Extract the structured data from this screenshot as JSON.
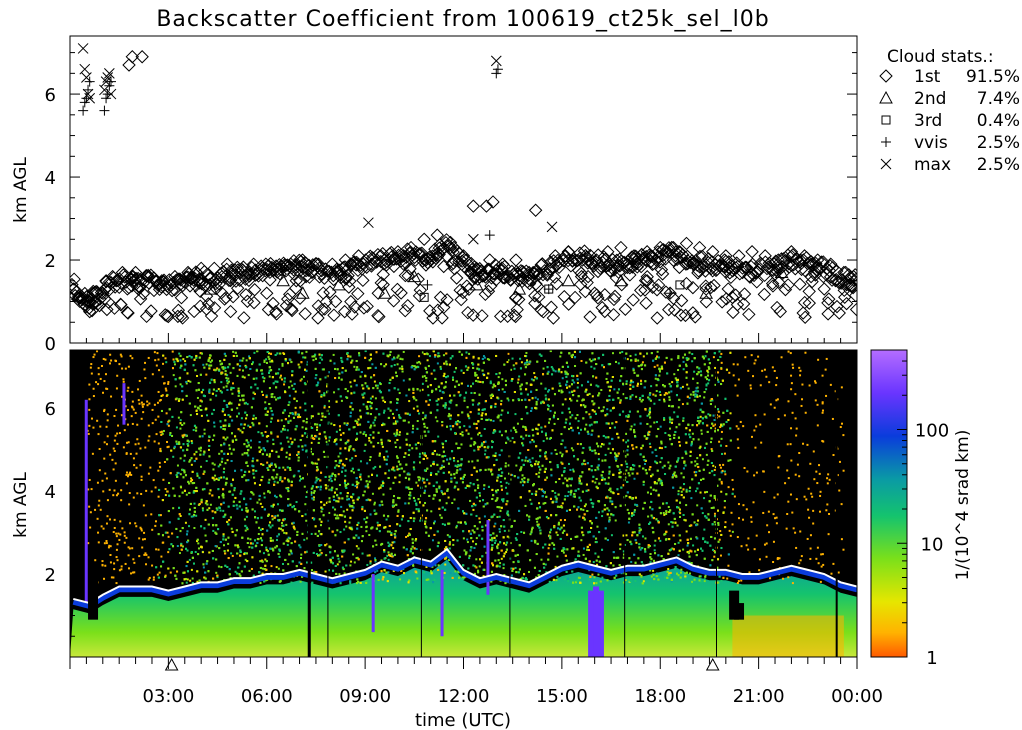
{
  "title": "Backscatter Coefficient from 100619_ct25k_sel_l0b",
  "colors": {
    "background": "#ffffff",
    "axes": "#000000",
    "cloud_marker": "#000000",
    "cloud_layer_white": "#ffffff",
    "colormap": [
      "#ff5a00",
      "#ffb300",
      "#e6e600",
      "#7be01a",
      "#14c36e",
      "#0a9aa5",
      "#0a3cdc",
      "#6a35ff",
      "#b46dff"
    ]
  },
  "chart_data": [
    {
      "type": "scatter",
      "name": "cloud-base-panel",
      "ylabel": "km AGL",
      "xlim": [
        0,
        24
      ],
      "ylim": [
        0,
        7.4
      ],
      "y_ticks": [
        "0",
        "2",
        "4",
        "6"
      ],
      "legend": {
        "position": "right",
        "title": "Cloud stats.:",
        "entries": [
          {
            "symbol": "diamond-icon",
            "glyph": "◇",
            "label": "1st",
            "value": "91.5%"
          },
          {
            "symbol": "triangle-icon",
            "glyph": "△",
            "label": "2nd",
            "value": "7.4%"
          },
          {
            "symbol": "square-icon",
            "glyph": "□",
            "label": "3rd",
            "value": "0.4%"
          },
          {
            "symbol": "plus-icon",
            "glyph": "+",
            "label": "vvis",
            "value": "2.5%"
          },
          {
            "symbol": "cross-icon",
            "glyph": "×",
            "label": "max",
            "value": "2.5%"
          }
        ]
      },
      "series": [
        {
          "marker": "diamond",
          "x": [
            0.1,
            0.3,
            0.5,
            0.7,
            0.9,
            1.1,
            1.3,
            1.6,
            2.0,
            2.4,
            2.8,
            3.2,
            3.6,
            4.0,
            4.4,
            4.8,
            5.2,
            5.6,
            6.0,
            6.3,
            6.6,
            6.9,
            7.2,
            7.6,
            8.0,
            8.4,
            8.8,
            9.2,
            9.6,
            10.0,
            10.4,
            10.8,
            11.2,
            11.6,
            12.0,
            12.4,
            12.8,
            13.2,
            13.6,
            14.0,
            14.4,
            14.8,
            15.2,
            15.6,
            16.0,
            16.4,
            16.8,
            17.2,
            17.6,
            18.0,
            18.4,
            18.8,
            19.2,
            19.6,
            20.0,
            20.4,
            20.8,
            21.2,
            21.6,
            22.0,
            22.4,
            22.8,
            23.2,
            23.6,
            23.9,
            1.8,
            1.9,
            2.2,
            12.3,
            12.7,
            12.9,
            14.2,
            8.1,
            9.4,
            10.3,
            11.3,
            13.6,
            15.8,
            17.6,
            18.3,
            19.4,
            20.2,
            21.9,
            22.6
          ],
          "y": [
            1.3,
            1.1,
            1.0,
            1.2,
            0.9,
            1.5,
            1.6,
            1.7,
            1.7,
            1.6,
            1.5,
            1.6,
            1.7,
            1.8,
            1.8,
            1.9,
            1.7,
            1.9,
            1.2,
            0.7,
            0.9,
            1.5,
            1.6,
            1.8,
            1.9,
            2.0,
            2.1,
            1.9,
            2.0,
            2.2,
            2.3,
            2.5,
            2.6,
            2.3,
            2.1,
            1.8,
            2.0,
            1.9,
            2.0,
            1.7,
            1.9,
            2.1,
            2.2,
            1.6,
            1.2,
            2.2,
            2.3,
            2.1,
            2.2,
            2.3,
            2.3,
            2.4,
            2.3,
            2.2,
            2.1,
            2.1,
            2.2,
            2.1,
            2.0,
            2.2,
            2.1,
            2.0,
            1.9,
            1.7,
            1.6,
            6.7,
            6.9,
            6.9,
            3.3,
            3.3,
            3.4,
            3.2,
            1.0,
            1.2,
            0.9,
            1.1,
            1.1,
            1.6,
            1.5,
            1.2,
            1.3,
            1.1,
            1.4,
            1.6
          ]
        },
        {
          "marker": "triangle",
          "x": [
            4.3,
            6.5,
            7.1,
            8.2,
            9.6,
            10.5,
            12.4,
            13.7,
            15.2,
            16.8,
            19.4,
            21.7
          ],
          "y": [
            1.3,
            1.5,
            1.2,
            1.4,
            1.2,
            1.6,
            1.4,
            1.3,
            1.5,
            1.5,
            1.2,
            1.7
          ]
        },
        {
          "marker": "square",
          "x": [
            10.8,
            14.6,
            18.6
          ],
          "y": [
            1.1,
            1.3,
            1.4
          ]
        },
        {
          "marker": "plus",
          "x": [
            0.4,
            0.45,
            0.5,
            0.55,
            0.6,
            1.05,
            1.1,
            1.15,
            1.2,
            1.25,
            13.0,
            13.05,
            12.8,
            10.9,
            14.6,
            18.3
          ],
          "y": [
            5.6,
            5.8,
            5.9,
            6.1,
            6.3,
            5.6,
            5.9,
            6.0,
            6.2,
            6.3,
            6.5,
            6.6,
            2.6,
            1.4,
            1.3,
            1.2
          ]
        },
        {
          "marker": "cross",
          "x": [
            0.4,
            0.45,
            0.5,
            0.55,
            0.6,
            1.05,
            1.1,
            1.15,
            1.2,
            1.25,
            13.0,
            9.1,
            12.3,
            14.7
          ],
          "y": [
            7.1,
            6.6,
            6.4,
            6.0,
            5.9,
            6.1,
            6.3,
            6.4,
            6.5,
            6.0,
            6.8,
            2.9,
            2.5,
            2.8
          ]
        }
      ]
    },
    {
      "type": "heatmap",
      "name": "backscatter-panel",
      "xlabel": "time (UTC)",
      "ylabel": "km AGL",
      "colorbar_label": "1/(10^4 srad km)",
      "x_ticks": [
        "03:00",
        "06:00",
        "09:00",
        "12:00",
        "15:00",
        "18:00",
        "21:00",
        "00:00"
      ],
      "y_ticks": [
        "2",
        "4",
        "6"
      ],
      "colorbar_ticks": [
        "1",
        "10",
        "100"
      ],
      "xlim": [
        0,
        24
      ],
      "ylim": [
        0,
        7.4
      ],
      "colorbar_range_log": [
        1,
        500
      ],
      "day_markers_x": [
        3.1,
        19.6
      ],
      "cloud_layer_height": [
        [
          0.1,
          1.4
        ],
        [
          0.6,
          1.3
        ],
        [
          1.0,
          1.5
        ],
        [
          1.5,
          1.7
        ],
        [
          2.0,
          1.7
        ],
        [
          2.5,
          1.7
        ],
        [
          3.0,
          1.6
        ],
        [
          3.5,
          1.7
        ],
        [
          4.0,
          1.8
        ],
        [
          4.5,
          1.8
        ],
        [
          5.0,
          1.9
        ],
        [
          5.5,
          1.9
        ],
        [
          6.0,
          2.0
        ],
        [
          6.5,
          2.0
        ],
        [
          7.0,
          2.1
        ],
        [
          7.5,
          2.0
        ],
        [
          8.0,
          1.9
        ],
        [
          8.5,
          2.0
        ],
        [
          9.0,
          2.1
        ],
        [
          9.5,
          2.3
        ],
        [
          10.0,
          2.2
        ],
        [
          10.5,
          2.4
        ],
        [
          11.0,
          2.3
        ],
        [
          11.5,
          2.6
        ],
        [
          12.0,
          2.1
        ],
        [
          12.5,
          1.9
        ],
        [
          13.0,
          2.0
        ],
        [
          13.5,
          1.9
        ],
        [
          14.0,
          1.8
        ],
        [
          14.5,
          2.0
        ],
        [
          15.0,
          2.2
        ],
        [
          15.5,
          2.3
        ],
        [
          16.0,
          2.2
        ],
        [
          16.5,
          2.1
        ],
        [
          17.0,
          2.2
        ],
        [
          17.5,
          2.2
        ],
        [
          18.0,
          2.3
        ],
        [
          18.5,
          2.4
        ],
        [
          19.0,
          2.2
        ],
        [
          19.5,
          2.1
        ],
        [
          20.0,
          2.1
        ],
        [
          20.5,
          2.0
        ],
        [
          21.0,
          2.0
        ],
        [
          21.5,
          2.1
        ],
        [
          22.0,
          2.2
        ],
        [
          22.5,
          2.1
        ],
        [
          23.0,
          2.0
        ],
        [
          23.5,
          1.8
        ],
        [
          24.0,
          1.7
        ]
      ]
    }
  ]
}
